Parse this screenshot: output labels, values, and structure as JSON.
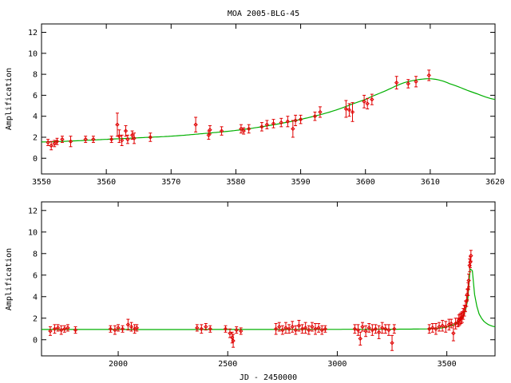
{
  "title": "MOA 2005-BLG-45",
  "colors": {
    "data": "#e00000",
    "model": "#00b000",
    "axes": "#000000"
  },
  "chart_data": [
    {
      "type": "scatter",
      "ylabel": "Amplification",
      "xlabel": "",
      "xlim": [
        3550,
        3620
      ],
      "ylim": [
        -1.5,
        12.8
      ],
      "x_ticks": [
        3550,
        3560,
        3570,
        3580,
        3590,
        3600,
        3610,
        3620
      ],
      "y_ticks": [
        0,
        2,
        4,
        6,
        8,
        10,
        12
      ],
      "model": {
        "name": "",
        "x": [
          3550,
          3555,
          3560,
          3565,
          3570,
          3575,
          3580,
          3585,
          3590,
          3595,
          3600,
          3603,
          3606,
          3609,
          3611,
          3613,
          3616,
          3620
        ],
        "y": [
          1.55,
          1.65,
          1.8,
          1.95,
          2.1,
          2.35,
          2.65,
          3.1,
          3.7,
          4.5,
          5.6,
          6.4,
          7.2,
          7.55,
          7.5,
          7.1,
          6.4,
          5.6
        ]
      },
      "points": [
        {
          "x": 3551.0,
          "y": 1.5,
          "e": 0.3
        },
        {
          "x": 3551.5,
          "y": 1.2,
          "e": 0.4
        },
        {
          "x": 3552.0,
          "y": 1.4,
          "e": 0.3
        },
        {
          "x": 3552.4,
          "y": 1.6,
          "e": 0.3
        },
        {
          "x": 3553.2,
          "y": 1.8,
          "e": 0.3
        },
        {
          "x": 3554.5,
          "y": 1.6,
          "e": 0.5
        },
        {
          "x": 3556.8,
          "y": 1.8,
          "e": 0.3
        },
        {
          "x": 3558.0,
          "y": 1.8,
          "e": 0.3
        },
        {
          "x": 3560.8,
          "y": 1.8,
          "e": 0.3
        },
        {
          "x": 3561.7,
          "y": 3.2,
          "e": 1.1
        },
        {
          "x": 3562.0,
          "y": 2.1,
          "e": 0.6
        },
        {
          "x": 3562.4,
          "y": 1.7,
          "e": 0.5
        },
        {
          "x": 3563.0,
          "y": 2.6,
          "e": 0.5
        },
        {
          "x": 3563.3,
          "y": 1.8,
          "e": 0.4
        },
        {
          "x": 3564.0,
          "y": 2.2,
          "e": 0.4
        },
        {
          "x": 3564.3,
          "y": 1.9,
          "e": 0.5
        },
        {
          "x": 3566.8,
          "y": 2.0,
          "e": 0.4
        },
        {
          "x": 3573.8,
          "y": 3.2,
          "e": 0.7
        },
        {
          "x": 3575.8,
          "y": 2.2,
          "e": 0.4
        },
        {
          "x": 3576.0,
          "y": 2.7,
          "e": 0.4
        },
        {
          "x": 3577.8,
          "y": 2.6,
          "e": 0.4
        },
        {
          "x": 3580.8,
          "y": 2.8,
          "e": 0.4
        },
        {
          "x": 3581.2,
          "y": 2.6,
          "e": 0.3
        },
        {
          "x": 3582.0,
          "y": 2.8,
          "e": 0.4
        },
        {
          "x": 3584.0,
          "y": 3.0,
          "e": 0.4
        },
        {
          "x": 3584.8,
          "y": 3.2,
          "e": 0.4
        },
        {
          "x": 3585.8,
          "y": 3.3,
          "e": 0.4
        },
        {
          "x": 3587.0,
          "y": 3.4,
          "e": 0.4
        },
        {
          "x": 3588.0,
          "y": 3.5,
          "e": 0.5
        },
        {
          "x": 3588.8,
          "y": 2.8,
          "e": 0.8
        },
        {
          "x": 3589.2,
          "y": 3.6,
          "e": 0.5
        },
        {
          "x": 3590.0,
          "y": 3.7,
          "e": 0.4
        },
        {
          "x": 3592.2,
          "y": 4.0,
          "e": 0.4
        },
        {
          "x": 3593.0,
          "y": 4.4,
          "e": 0.5
        },
        {
          "x": 3597.0,
          "y": 4.7,
          "e": 0.8
        },
        {
          "x": 3597.5,
          "y": 4.6,
          "e": 0.6
        },
        {
          "x": 3598.0,
          "y": 4.4,
          "e": 0.9
        },
        {
          "x": 3599.8,
          "y": 5.4,
          "e": 0.6
        },
        {
          "x": 3600.3,
          "y": 5.2,
          "e": 0.5
        },
        {
          "x": 3601.0,
          "y": 5.6,
          "e": 0.5
        },
        {
          "x": 3604.8,
          "y": 7.2,
          "e": 0.6
        },
        {
          "x": 3606.6,
          "y": 7.1,
          "e": 0.4
        },
        {
          "x": 3607.8,
          "y": 7.3,
          "e": 0.5
        },
        {
          "x": 3609.8,
          "y": 7.9,
          "e": 0.5
        }
      ]
    },
    {
      "type": "scatter",
      "ylabel": "Amplification",
      "xlabel": "JD - 2450000",
      "xlim": [
        1650,
        3720
      ],
      "ylim": [
        -1.5,
        12.8
      ],
      "x_ticks": [
        2000,
        2500,
        3000,
        3500
      ],
      "y_ticks": [
        0,
        2,
        4,
        6,
        8,
        10,
        12
      ],
      "model": {
        "name": "",
        "x": [
          1650,
          2500,
          3200,
          3400,
          3480,
          3520,
          3550,
          3570,
          3585,
          3595,
          3600,
          3603,
          3607,
          3610,
          3613,
          3616,
          3622,
          3630,
          3645,
          3665,
          3690,
          3720
        ],
        "y": [
          0.95,
          0.95,
          0.97,
          1.0,
          1.1,
          1.3,
          1.6,
          2.0,
          2.7,
          3.6,
          4.4,
          5.6,
          6.8,
          7.55,
          7.2,
          6.5,
          5.0,
          3.7,
          2.5,
          1.8,
          1.4,
          1.2
        ]
      },
      "points": [
        {
          "x": 1690,
          "y": 0.8,
          "e": 0.4
        },
        {
          "x": 1710,
          "y": 1.0,
          "e": 0.4
        },
        {
          "x": 1725,
          "y": 1.1,
          "e": 0.3
        },
        {
          "x": 1740,
          "y": 0.9,
          "e": 0.4
        },
        {
          "x": 1755,
          "y": 1.0,
          "e": 0.3
        },
        {
          "x": 1770,
          "y": 1.1,
          "e": 0.3
        },
        {
          "x": 1805,
          "y": 0.9,
          "e": 0.3
        },
        {
          "x": 1965,
          "y": 1.0,
          "e": 0.3
        },
        {
          "x": 1985,
          "y": 0.9,
          "e": 0.4
        },
        {
          "x": 2000,
          "y": 1.1,
          "e": 0.3
        },
        {
          "x": 2020,
          "y": 1.0,
          "e": 0.3
        },
        {
          "x": 2045,
          "y": 1.4,
          "e": 0.5
        },
        {
          "x": 2060,
          "y": 1.2,
          "e": 0.4
        },
        {
          "x": 2075,
          "y": 1.0,
          "e": 0.4
        },
        {
          "x": 2085,
          "y": 1.1,
          "e": 0.3
        },
        {
          "x": 2360,
          "y": 1.1,
          "e": 0.3
        },
        {
          "x": 2380,
          "y": 1.0,
          "e": 0.4
        },
        {
          "x": 2400,
          "y": 1.2,
          "e": 0.3
        },
        {
          "x": 2420,
          "y": 1.0,
          "e": 0.3
        },
        {
          "x": 2490,
          "y": 1.0,
          "e": 0.3
        },
        {
          "x": 2510,
          "y": 0.6,
          "e": 0.4
        },
        {
          "x": 2520,
          "y": 0.2,
          "e": 0.5
        },
        {
          "x": 2525,
          "y": -0.1,
          "e": 0.6
        },
        {
          "x": 2540,
          "y": 0.9,
          "e": 0.3
        },
        {
          "x": 2560,
          "y": 0.8,
          "e": 0.3
        },
        {
          "x": 2720,
          "y": 1.0,
          "e": 0.5
        },
        {
          "x": 2735,
          "y": 1.2,
          "e": 0.4
        },
        {
          "x": 2750,
          "y": 0.9,
          "e": 0.4
        },
        {
          "x": 2765,
          "y": 1.1,
          "e": 0.5
        },
        {
          "x": 2780,
          "y": 1.0,
          "e": 0.4
        },
        {
          "x": 2795,
          "y": 1.2,
          "e": 0.5
        },
        {
          "x": 2810,
          "y": 0.9,
          "e": 0.4
        },
        {
          "x": 2825,
          "y": 1.3,
          "e": 0.5
        },
        {
          "x": 2840,
          "y": 1.0,
          "e": 0.4
        },
        {
          "x": 2855,
          "y": 1.1,
          "e": 0.5
        },
        {
          "x": 2870,
          "y": 0.9,
          "e": 0.4
        },
        {
          "x": 2885,
          "y": 1.2,
          "e": 0.4
        },
        {
          "x": 2900,
          "y": 1.0,
          "e": 0.5
        },
        {
          "x": 2915,
          "y": 1.1,
          "e": 0.4
        },
        {
          "x": 2930,
          "y": 0.9,
          "e": 0.4
        },
        {
          "x": 2945,
          "y": 1.0,
          "e": 0.3
        },
        {
          "x": 3080,
          "y": 1.0,
          "e": 0.4
        },
        {
          "x": 3095,
          "y": 0.9,
          "e": 0.5
        },
        {
          "x": 3105,
          "y": 0.1,
          "e": 0.6
        },
        {
          "x": 3115,
          "y": 1.2,
          "e": 0.4
        },
        {
          "x": 3130,
          "y": 0.8,
          "e": 0.5
        },
        {
          "x": 3145,
          "y": 1.1,
          "e": 0.4
        },
        {
          "x": 3160,
          "y": 0.9,
          "e": 0.5
        },
        {
          "x": 3175,
          "y": 1.0,
          "e": 0.4
        },
        {
          "x": 3190,
          "y": 0.7,
          "e": 0.6
        },
        {
          "x": 3205,
          "y": 1.1,
          "e": 0.5
        },
        {
          "x": 3220,
          "y": 1.0,
          "e": 0.4
        },
        {
          "x": 3235,
          "y": 0.9,
          "e": 0.5
        },
        {
          "x": 3250,
          "y": -0.3,
          "e": 0.7
        },
        {
          "x": 3260,
          "y": 1.0,
          "e": 0.4
        },
        {
          "x": 3420,
          "y": 1.0,
          "e": 0.4
        },
        {
          "x": 3435,
          "y": 1.1,
          "e": 0.4
        },
        {
          "x": 3450,
          "y": 1.0,
          "e": 0.5
        },
        {
          "x": 3465,
          "y": 1.2,
          "e": 0.4
        },
        {
          "x": 3480,
          "y": 1.3,
          "e": 0.5
        },
        {
          "x": 3495,
          "y": 1.2,
          "e": 0.5
        },
        {
          "x": 3510,
          "y": 1.4,
          "e": 0.5
        },
        {
          "x": 3520,
          "y": 1.5,
          "e": 0.4
        },
        {
          "x": 3530,
          "y": 0.6,
          "e": 0.7
        },
        {
          "x": 3540,
          "y": 1.5,
          "e": 0.5
        },
        {
          "x": 3550,
          "y": 1.6,
          "e": 0.4
        },
        {
          "x": 3555,
          "y": 1.8,
          "e": 0.5
        },
        {
          "x": 3560,
          "y": 1.9,
          "e": 0.5
        },
        {
          "x": 3565,
          "y": 2.0,
          "e": 0.5
        },
        {
          "x": 3570,
          "y": 2.1,
          "e": 0.5
        },
        {
          "x": 3575,
          "y": 2.4,
          "e": 0.5
        },
        {
          "x": 3580,
          "y": 2.7,
          "e": 0.5
        },
        {
          "x": 3585,
          "y": 3.1,
          "e": 0.5
        },
        {
          "x": 3590,
          "y": 3.6,
          "e": 0.5
        },
        {
          "x": 3593,
          "y": 4.2,
          "e": 0.5
        },
        {
          "x": 3597,
          "y": 4.7,
          "e": 0.6
        },
        {
          "x": 3600,
          "y": 5.5,
          "e": 0.6
        },
        {
          "x": 3604,
          "y": 6.9,
          "e": 0.6
        },
        {
          "x": 3607,
          "y": 7.2,
          "e": 0.5
        },
        {
          "x": 3610,
          "y": 7.8,
          "e": 0.5
        }
      ]
    }
  ]
}
